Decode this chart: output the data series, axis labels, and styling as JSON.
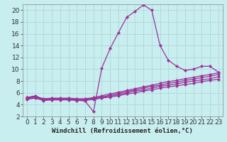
{
  "x": [
    0,
    1,
    2,
    3,
    4,
    5,
    6,
    7,
    8,
    9,
    10,
    11,
    12,
    13,
    14,
    15,
    16,
    17,
    18,
    19,
    20,
    21,
    22,
    23
  ],
  "main_line": [
    5.2,
    5.5,
    4.9,
    5.0,
    5.0,
    5.0,
    4.8,
    4.6,
    2.8,
    10.2,
    13.5,
    16.2,
    18.8,
    19.8,
    20.9,
    20.0,
    14.0,
    11.5,
    10.5,
    9.8,
    10.0,
    10.5,
    10.5,
    9.5
  ],
  "line2": [
    5.2,
    5.4,
    5.0,
    5.1,
    5.1,
    5.1,
    5.0,
    5.0,
    5.2,
    5.5,
    5.8,
    6.1,
    6.4,
    6.7,
    7.0,
    7.3,
    7.6,
    7.9,
    8.1,
    8.4,
    8.6,
    8.9,
    9.1,
    9.4
  ],
  "line3": [
    5.1,
    5.3,
    4.9,
    5.0,
    5.0,
    5.0,
    4.9,
    4.9,
    5.1,
    5.3,
    5.6,
    5.9,
    6.2,
    6.5,
    6.8,
    7.1,
    7.3,
    7.6,
    7.8,
    8.1,
    8.3,
    8.6,
    8.8,
    9.1
  ],
  "line4": [
    5.0,
    5.2,
    4.8,
    4.9,
    4.9,
    4.9,
    4.8,
    4.8,
    5.0,
    5.2,
    5.4,
    5.7,
    6.0,
    6.3,
    6.5,
    6.8,
    7.1,
    7.3,
    7.5,
    7.8,
    8.0,
    8.2,
    8.4,
    8.7
  ],
  "line5": [
    4.9,
    5.1,
    4.7,
    4.8,
    4.8,
    4.8,
    4.7,
    4.7,
    4.9,
    5.1,
    5.3,
    5.5,
    5.8,
    6.0,
    6.3,
    6.5,
    6.8,
    7.0,
    7.2,
    7.4,
    7.6,
    7.9,
    8.1,
    8.3
  ],
  "line_color": "#993399",
  "bg_color": "#c8eef0",
  "grid_color": "#b0d8da",
  "xlabel": "Windchill (Refroidissement éolien,°C)",
  "ylim": [
    2,
    21
  ],
  "xlim": [
    -0.5,
    23.5
  ],
  "yticks": [
    2,
    4,
    6,
    8,
    10,
    12,
    14,
    16,
    18,
    20
  ],
  "xticks": [
    0,
    1,
    2,
    3,
    4,
    5,
    6,
    7,
    8,
    9,
    10,
    11,
    12,
    13,
    14,
    15,
    16,
    17,
    18,
    19,
    20,
    21,
    22,
    23
  ],
  "marker": "D",
  "markersize": 2.2,
  "linewidth": 0.9,
  "font_size": 6.5
}
